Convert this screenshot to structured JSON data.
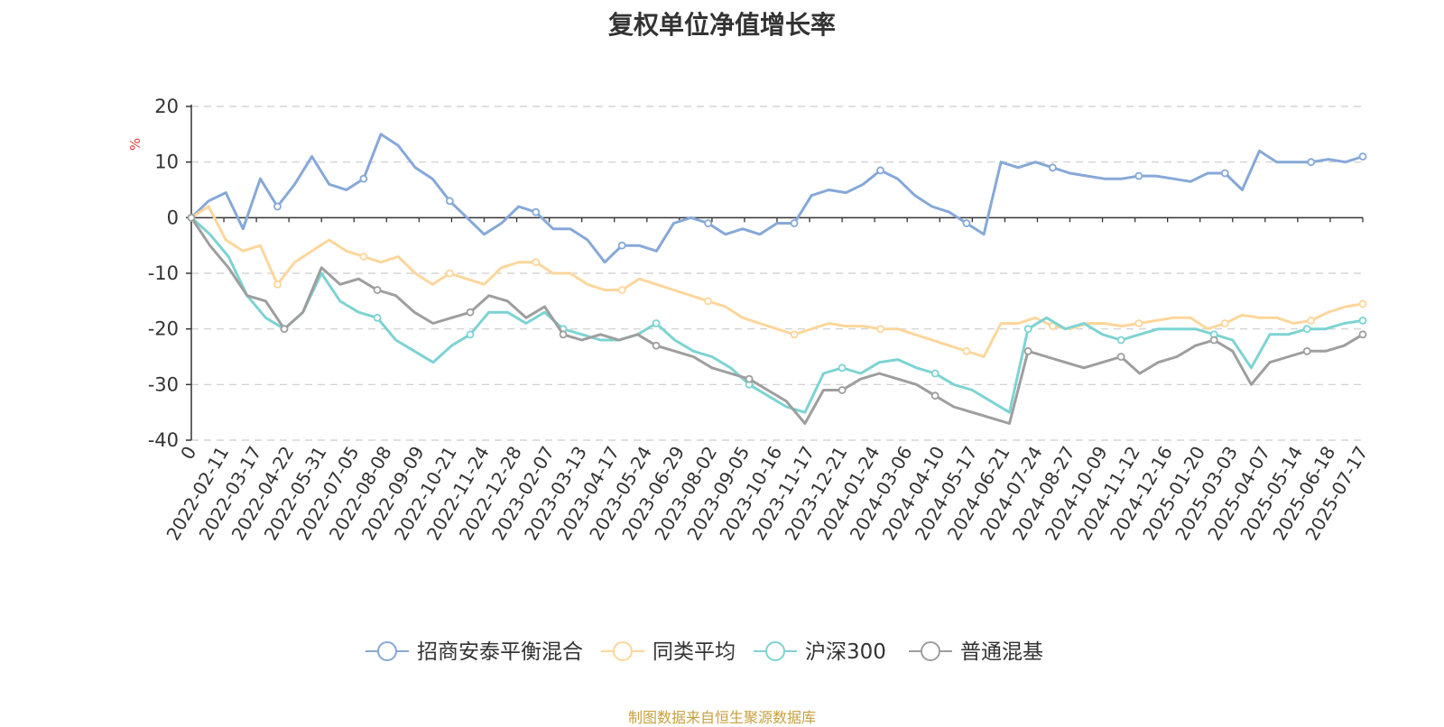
{
  "chart_data": {
    "type": "line",
    "title": "复权单位净值增长率",
    "ylabel": "%",
    "ylim": [
      -40,
      20
    ],
    "yticks": [
      20,
      10,
      0,
      -10,
      -20,
      -30,
      -40
    ],
    "xlabels": [
      "0",
      "2022-02-11",
      "2022-03-17",
      "2022-04-22",
      "2022-05-31",
      "2022-07-05",
      "2022-08-08",
      "2022-09-09",
      "2022-10-21",
      "2022-11-24",
      "2022-12-28",
      "2023-02-07",
      "2023-03-13",
      "2023-04-17",
      "2023-05-24",
      "2023-06-29",
      "2023-08-02",
      "2023-09-05",
      "2023-10-16",
      "2023-11-17",
      "2023-12-21",
      "2024-01-24",
      "2024-03-06",
      "2024-04-10",
      "2024-05-17",
      "2024-06-21",
      "2024-07-24",
      "2024-08-27",
      "2024-10-09",
      "2024-11-12",
      "2024-12-16",
      "2025-01-20",
      "2025-03-03",
      "2025-04-07",
      "2025-05-14",
      "2025-06-18",
      "2025-07-17"
    ],
    "grid": true,
    "legend_position": "bottom",
    "series": [
      {
        "name": "招商安泰平衡混合",
        "color": "#86a8d8",
        "values": [
          0,
          3,
          4.5,
          -2,
          7,
          2,
          6,
          11,
          6,
          5,
          7,
          15,
          13,
          9,
          7,
          3,
          0,
          -3,
          -1,
          2,
          1,
          -2,
          -2,
          -4,
          -8,
          -5,
          -5,
          -6,
          -1,
          0,
          -1,
          -3,
          -2,
          -3,
          -1,
          -1,
          4,
          5,
          4.5,
          6,
          8.5,
          7,
          4,
          2,
          1,
          -1,
          -3,
          10,
          9,
          10,
          9,
          8,
          7.5,
          7,
          7,
          7.5,
          7.5,
          7,
          6.5,
          8,
          8,
          5,
          12,
          10,
          10,
          10,
          10.5,
          10,
          11
        ]
      },
      {
        "name": "同类平均",
        "color": "#fdd69b",
        "values": [
          0,
          2,
          -4,
          -6,
          -5,
          -12,
          -8,
          -6,
          -4,
          -6,
          -7,
          -8,
          -7,
          -10,
          -12,
          -10,
          -11,
          -12,
          -9,
          -8,
          -8,
          -10,
          -10,
          -12,
          -13,
          -13,
          -11,
          -12,
          -13,
          -14,
          -15,
          -16,
          -18,
          -19,
          -20,
          -21,
          -20,
          -19,
          -19.5,
          -19.5,
          -20,
          -20,
          -21,
          -22,
          -23,
          -24,
          -25,
          -19,
          -19,
          -18,
          -19.5,
          -20,
          -19,
          -19,
          -19.5,
          -19,
          -18.5,
          -18,
          -18,
          -20,
          -19,
          -17.5,
          -18,
          -18,
          -19,
          -18.5,
          -17,
          -16,
          -15.5
        ]
      },
      {
        "name": "沪深300",
        "color": "#7dd3d3",
        "values": [
          0,
          -3,
          -7,
          -14,
          -18,
          -20,
          -17,
          -10,
          -15,
          -17,
          -18,
          -22,
          -24,
          -26,
          -23,
          -21,
          -17,
          -17,
          -19,
          -17,
          -20,
          -21,
          -22,
          -22,
          -21,
          -19,
          -22,
          -24,
          -25,
          -27,
          -30,
          -32,
          -34,
          -35,
          -28,
          -27,
          -28,
          -26,
          -25.5,
          -27,
          -28,
          -30,
          -31,
          -33,
          -35,
          -20,
          -18,
          -20,
          -19,
          -21,
          -22,
          -21,
          -20,
          -20,
          -20,
          -21,
          -22,
          -27,
          -21,
          -21,
          -20,
          -20,
          -19,
          -18.5
        ]
      },
      {
        "name": "普通混基",
        "color": "#9e9e9e",
        "values": [
          0,
          -5,
          -9,
          -14,
          -15,
          -20,
          -17,
          -9,
          -12,
          -11,
          -13,
          -14,
          -17,
          -19,
          -18,
          -17,
          -14,
          -15,
          -18,
          -16,
          -21,
          -22,
          -21,
          -22,
          -21,
          -23,
          -24,
          -25,
          -27,
          -28,
          -29,
          -31,
          -33,
          -37,
          -31,
          -31,
          -29,
          -28,
          -29,
          -30,
          -32,
          -34,
          -35,
          -36,
          -37,
          -24,
          -25,
          -26,
          -27,
          -26,
          -25,
          -28,
          -26,
          -25,
          -23,
          -22,
          -24,
          -30,
          -26,
          -25,
          -24,
          -24,
          -23,
          -21
        ]
      }
    ]
  },
  "source_text": "制图数据来自恒生聚源数据库"
}
